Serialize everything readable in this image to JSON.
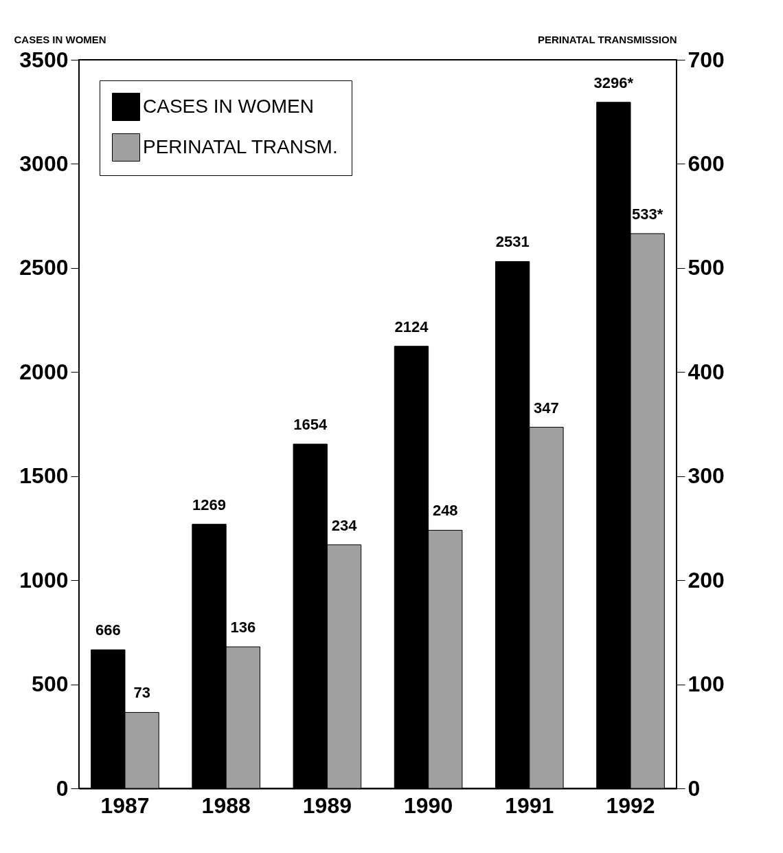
{
  "chart_data": {
    "type": "bar",
    "ylabel": "CASES IN WOMEN",
    "y2label": "PERINATAL TRANSMISSION",
    "categories": [
      "1987",
      "1988",
      "1989",
      "1990",
      "1991",
      "1992"
    ],
    "series": [
      {
        "name": "CASES IN WOMEN",
        "color": "#000000",
        "values": [
          666,
          1269,
          1654,
          2124,
          2531,
          3296
        ],
        "value_labels": [
          "666",
          "1269",
          "1654",
          "2124",
          "2531",
          "3296*"
        ]
      },
      {
        "name": "PERINATAL TRANSM.",
        "color": "#a0a0a0",
        "axis": "y2",
        "values": [
          73,
          136,
          234,
          248,
          347,
          533
        ],
        "value_labels": [
          "73",
          "136",
          "234",
          "248",
          "347",
          "533*"
        ]
      }
    ],
    "ylim": [
      0,
      3500
    ],
    "yticks": [
      0,
      500,
      1000,
      1500,
      2000,
      2500,
      3000,
      3500
    ],
    "y2lim": [
      0,
      700
    ],
    "y2ticks": [
      0,
      100,
      200,
      300,
      400,
      500,
      600,
      700
    ],
    "legend": "top left",
    "grid": false
  }
}
